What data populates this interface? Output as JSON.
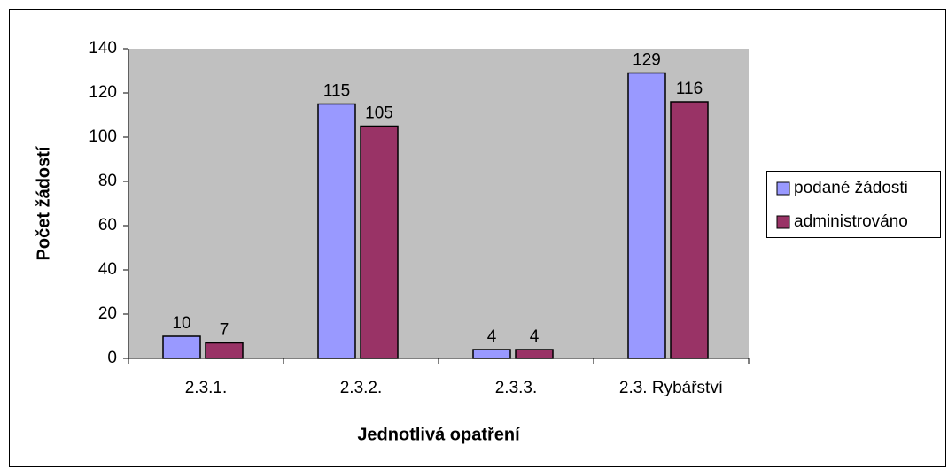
{
  "chart_data": {
    "type": "bar",
    "categories": [
      "2.3.1.",
      "2.3.2.",
      "2.3.3.",
      "2.3. Rybářství"
    ],
    "series": [
      {
        "name": "podané žádosti",
        "color": "#9999ff",
        "values": [
          10,
          115,
          4,
          129
        ]
      },
      {
        "name": "administrováno",
        "color": "#993366",
        "values": [
          7,
          105,
          4,
          116
        ]
      }
    ],
    "x_label": "Jednotlivá opatření",
    "y_label": "Počet žádostí",
    "ylim": [
      0,
      140
    ],
    "yticks": [
      0,
      20,
      40,
      60,
      80,
      100,
      120,
      140
    ],
    "grid": false,
    "legend": "right"
  }
}
